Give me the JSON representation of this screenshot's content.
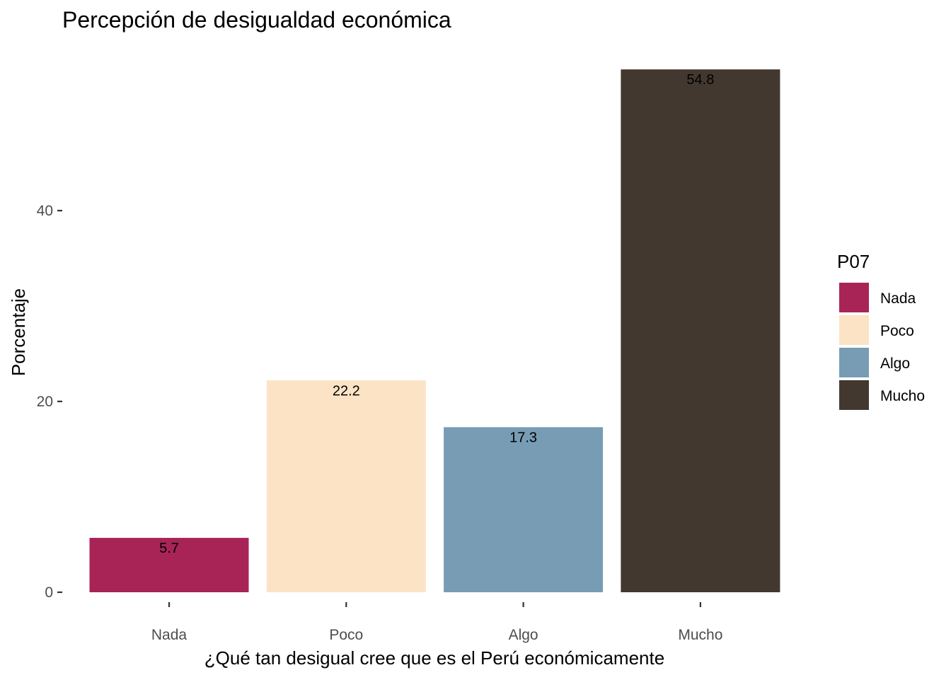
{
  "chart_data": {
    "type": "bar",
    "title": "Percepción de desigualdad económica",
    "xlabel": "¿Qué tan desigual cree que es el Perú económicamente",
    "ylabel": "Porcentaje",
    "categories": [
      "Nada",
      "Poco",
      "Algo",
      "Mucho"
    ],
    "values": [
      5.7,
      22.2,
      17.3,
      54.8
    ],
    "data_labels": [
      "5.7",
      "22.2",
      "17.3",
      "54.8"
    ],
    "colors": [
      "#A82457",
      "#FCE3C5",
      "#789CB4",
      "#433830"
    ],
    "yticks": [
      0,
      20,
      40
    ],
    "ylim": [
      0,
      56
    ],
    "grid": false,
    "legend": {
      "title": "P07",
      "position": "right",
      "items": [
        "Nada",
        "Poco",
        "Algo",
        "Mucho"
      ]
    }
  }
}
